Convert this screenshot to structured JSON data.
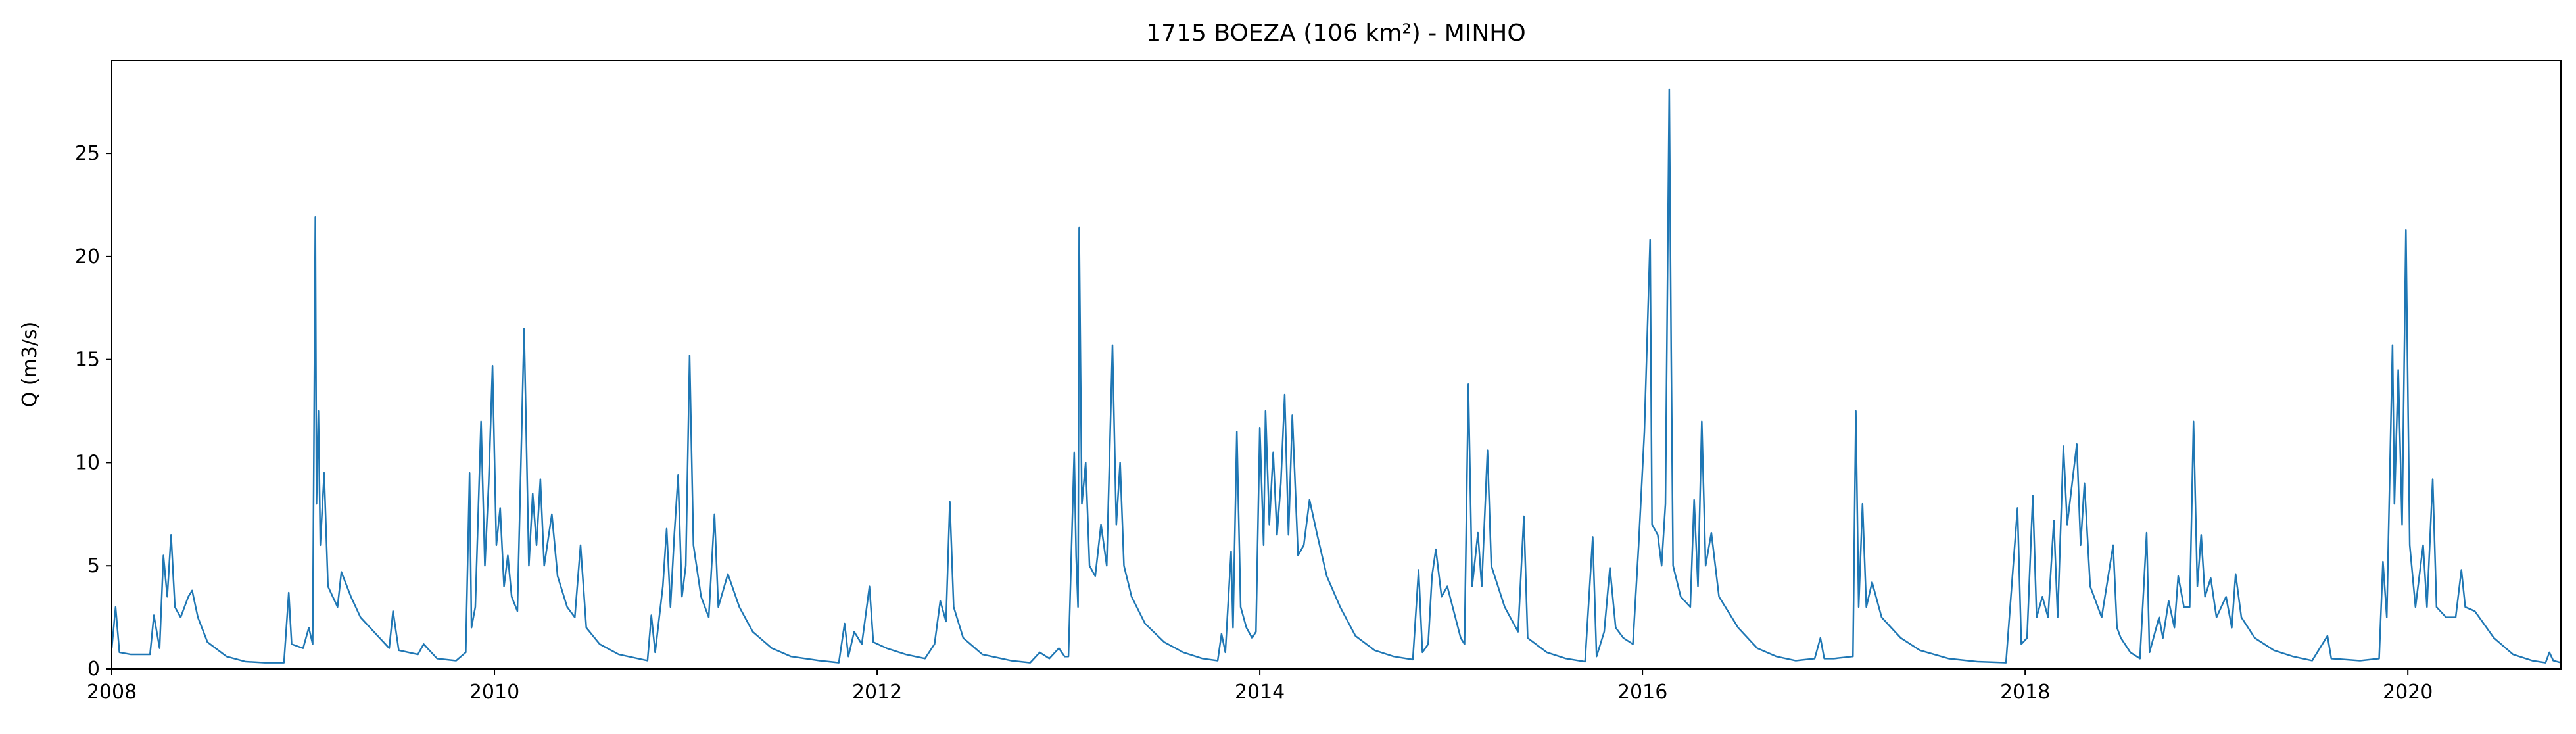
{
  "chart_data": {
    "type": "line",
    "title": "1715 BOEZA (106 km²) - MINHO",
    "ylabel": "Q (m3/s)",
    "color": "#1f77b4",
    "x": [
      2008.0,
      2008.02,
      2008.04,
      2008.1,
      2008.2,
      2008.22,
      2008.25,
      2008.27,
      2008.29,
      2008.31,
      2008.33,
      2008.36,
      2008.4,
      2008.42,
      2008.45,
      2008.5,
      2008.6,
      2008.7,
      2008.8,
      2008.9,
      2008.925,
      2008.94,
      2009.0,
      2009.03,
      2009.05,
      2009.064,
      2009.07,
      2009.08,
      2009.09,
      2009.11,
      2009.13,
      2009.18,
      2009.2,
      2009.25,
      2009.3,
      2009.4,
      2009.45,
      2009.47,
      2009.5,
      2009.6,
      2009.63,
      2009.7,
      2009.8,
      2009.85,
      2009.87,
      2009.88,
      2009.9,
      2009.93,
      2009.95,
      2009.97,
      2009.99,
      2010.01,
      2010.03,
      2010.05,
      2010.07,
      2010.09,
      2010.12,
      2010.155,
      2010.165,
      2010.18,
      2010.2,
      2010.22,
      2010.24,
      2010.26,
      2010.3,
      2010.33,
      2010.38,
      2010.42,
      2010.45,
      2010.48,
      2010.55,
      2010.65,
      2010.75,
      2010.8,
      2010.82,
      2010.84,
      2010.88,
      2010.9,
      2010.92,
      2010.94,
      2010.96,
      2010.98,
      2011.0,
      2011.02,
      2011.04,
      2011.08,
      2011.12,
      2011.15,
      2011.17,
      2011.22,
      2011.28,
      2011.35,
      2011.45,
      2011.55,
      2011.7,
      2011.8,
      2011.83,
      2011.85,
      2011.88,
      2011.92,
      2011.96,
      2011.98,
      2012.05,
      2012.15,
      2012.25,
      2012.3,
      2012.33,
      2012.36,
      2012.38,
      2012.4,
      2012.45,
      2012.55,
      2012.7,
      2012.8,
      2012.85,
      2012.9,
      2012.95,
      2012.98,
      2013.0,
      2013.03,
      2013.04,
      2013.05,
      2013.056,
      2013.07,
      2013.09,
      2013.11,
      2013.14,
      2013.17,
      2013.2,
      2013.23,
      2013.25,
      2013.27,
      2013.29,
      2013.33,
      2013.4,
      2013.5,
      2013.6,
      2013.7,
      2013.78,
      2013.8,
      2013.82,
      2013.85,
      2013.86,
      2013.88,
      2013.9,
      2013.93,
      2013.96,
      2013.98,
      2014.0,
      2014.02,
      2014.03,
      2014.05,
      2014.07,
      2014.09,
      2014.11,
      2014.13,
      2014.15,
      2014.17,
      2014.2,
      2014.23,
      2014.26,
      2014.3,
      2014.35,
      2014.42,
      2014.5,
      2014.6,
      2014.7,
      2014.8,
      2014.83,
      2014.85,
      2014.88,
      2014.9,
      2014.92,
      2014.95,
      2014.98,
      2015.05,
      2015.07,
      2015.09,
      2015.11,
      2015.14,
      2015.16,
      2015.19,
      2015.21,
      2015.28,
      2015.35,
      2015.38,
      2015.4,
      2015.5,
      2015.6,
      2015.7,
      2015.74,
      2015.76,
      2015.8,
      2015.83,
      2015.86,
      2015.9,
      2015.95,
      2015.98,
      2016.01,
      2016.04,
      2016.05,
      2016.08,
      2016.1,
      2016.12,
      2016.14,
      2016.15,
      2016.16,
      2016.2,
      2016.25,
      2016.27,
      2016.29,
      2016.31,
      2016.33,
      2016.36,
      2016.4,
      2016.5,
      2016.6,
      2016.7,
      2016.8,
      2016.9,
      2016.93,
      2016.95,
      2017.0,
      2017.1,
      2017.115,
      2017.13,
      2017.15,
      2017.17,
      2017.2,
      2017.25,
      2017.35,
      2017.45,
      2017.6,
      2017.75,
      2017.9,
      2017.96,
      2017.98,
      2018.01,
      2018.04,
      2018.06,
      2018.09,
      2018.12,
      2018.15,
      2018.17,
      2018.2,
      2018.22,
      2018.27,
      2018.29,
      2018.31,
      2018.34,
      2018.4,
      2018.46,
      2018.48,
      2018.5,
      2018.55,
      2018.6,
      2018.635,
      2018.65,
      2018.7,
      2018.72,
      2018.75,
      2018.78,
      2018.8,
      2018.83,
      2018.86,
      2018.88,
      2018.9,
      2018.92,
      2018.94,
      2018.97,
      2019.0,
      2019.05,
      2019.08,
      2019.1,
      2019.13,
      2019.2,
      2019.3,
      2019.4,
      2019.5,
      2019.58,
      2019.6,
      2019.75,
      2019.85,
      2019.87,
      2019.89,
      2019.92,
      2019.93,
      2019.95,
      2019.97,
      2019.99,
      2020.01,
      2020.04,
      2020.08,
      2020.1,
      2020.13,
      2020.15,
      2020.2,
      2020.25,
      2020.28,
      2020.3,
      2020.35,
      2020.45,
      2020.55,
      2020.65,
      2020.72,
      2020.74,
      2020.76,
      2020.8
    ],
    "values": [
      1.0,
      3.0,
      0.8,
      0.7,
      0.7,
      2.6,
      1.0,
      5.5,
      3.5,
      6.5,
      3.0,
      2.5,
      3.5,
      3.8,
      2.5,
      1.3,
      0.6,
      0.35,
      0.3,
      0.3,
      3.7,
      1.2,
      1.0,
      2.0,
      1.2,
      21.9,
      8,
      12.5,
      6,
      9.5,
      4,
      3.0,
      4.7,
      3.5,
      2.5,
      1.5,
      1.0,
      2.8,
      0.9,
      0.7,
      1.2,
      0.5,
      0.4,
      0.8,
      9.5,
      2,
      3,
      12,
      5,
      9,
      14.7,
      6,
      7.8,
      4,
      5.5,
      3.5,
      2.8,
      16.5,
      12,
      5,
      8.5,
      6,
      9.2,
      5,
      7.5,
      4.5,
      3,
      2.5,
      6.0,
      2.0,
      1.2,
      0.7,
      0.5,
      0.4,
      2.6,
      0.8,
      4.0,
      6.8,
      3,
      6.5,
      9.4,
      3.5,
      5,
      15.2,
      6,
      3.5,
      2.5,
      7.5,
      3,
      4.6,
      3,
      1.8,
      1.0,
      0.6,
      0.4,
      0.3,
      2.2,
      0.6,
      1.8,
      1.2,
      4.0,
      1.3,
      1.0,
      0.7,
      0.5,
      1.2,
      3.3,
      2.3,
      8.1,
      3,
      1.5,
      0.7,
      0.4,
      0.3,
      0.8,
      0.5,
      1.0,
      0.6,
      0.6,
      10.5,
      5.5,
      3,
      21.4,
      8,
      10,
      5,
      4.5,
      7,
      5,
      15.7,
      7,
      10,
      5,
      3.5,
      2.2,
      1.3,
      0.8,
      0.5,
      0.4,
      1.7,
      0.8,
      5.7,
      2,
      11.5,
      3,
      2,
      1.5,
      1.8,
      11.7,
      6,
      12.5,
      7,
      10.5,
      6.5,
      9,
      13.3,
      6.5,
      12.3,
      5.5,
      6,
      8.2,
      6.5,
      4.5,
      3,
      1.6,
      0.9,
      0.6,
      0.45,
      4.8,
      0.8,
      1.2,
      4.5,
      5.8,
      3.5,
      4,
      1.5,
      1.2,
      13.8,
      4,
      6.6,
      4,
      10.6,
      5,
      3,
      1.8,
      7.4,
      1.5,
      0.8,
      0.5,
      0.35,
      6.4,
      0.6,
      1.8,
      4.9,
      2,
      1.5,
      1.2,
      6,
      11.5,
      20.8,
      7,
      6.5,
      5,
      8,
      28.1,
      15.5,
      5,
      3.5,
      3,
      8.2,
      4,
      12,
      5,
      6.6,
      3.5,
      2,
      1,
      0.6,
      0.4,
      0.5,
      1.5,
      0.5,
      0.5,
      0.6,
      12.5,
      3,
      8,
      3,
      4.2,
      2.5,
      1.5,
      0.9,
      0.5,
      0.35,
      0.3,
      7.8,
      1.2,
      1.5,
      8.4,
      2.5,
      3.5,
      2.5,
      7.2,
      2.5,
      10.8,
      7,
      10.9,
      6,
      9,
      4,
      2.5,
      6.0,
      2,
      1.5,
      0.8,
      0.5,
      6.6,
      0.8,
      2.5,
      1.5,
      3.3,
      2,
      4.5,
      3,
      3,
      12,
      4,
      6.5,
      3.5,
      4.4,
      2.5,
      3.5,
      2,
      4.6,
      2.5,
      1.5,
      0.9,
      0.6,
      0.4,
      1.6,
      0.5,
      0.4,
      0.5,
      5.2,
      2.5,
      15.7,
      8,
      14.5,
      7,
      21.3,
      6,
      3,
      6,
      3,
      9.2,
      3,
      2.5,
      2.5,
      4.8,
      3,
      2.8,
      1.5,
      0.7,
      0.4,
      0.3,
      0.8,
      0.4,
      0.3
    ],
    "xlim": [
      2008,
      2020.8
    ],
    "xticks": [
      2008,
      2010,
      2012,
      2014,
      2016,
      2018,
      2020
    ],
    "ylim": [
      0,
      29.5
    ],
    "yticks": [
      0,
      5,
      10,
      15,
      20,
      25
    ]
  }
}
